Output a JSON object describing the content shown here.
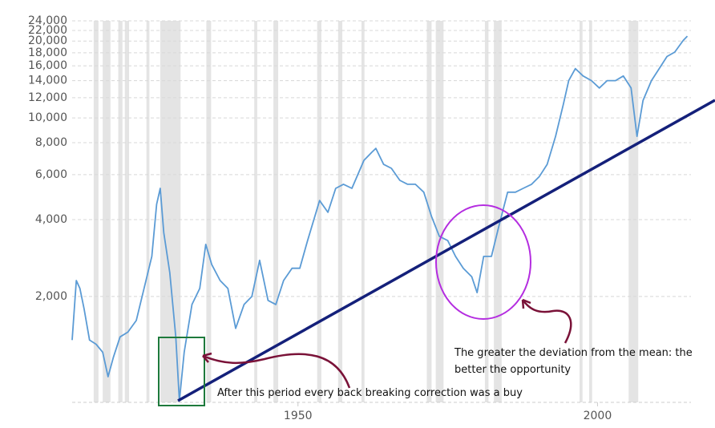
{
  "chart_data": {
    "type": "line",
    "log_scale": true,
    "grid": true,
    "color": "#5b9bd5",
    "recession_color": "#e4e4e4",
    "xlim": [
      1912.3,
      2015.6
    ],
    "xticks": [
      1950,
      2000
    ],
    "ylim": [
      770,
      24000
    ],
    "yticks": [
      {
        "value": 2000,
        "label": "2,000"
      },
      {
        "value": 4000,
        "label": "4,000"
      },
      {
        "value": 6000,
        "label": "6,000"
      },
      {
        "value": 8000,
        "label": "8,000"
      },
      {
        "value": 10000,
        "label": "10,000"
      },
      {
        "value": 12000,
        "label": "12,000"
      },
      {
        "value": 14000,
        "label": "14,000"
      },
      {
        "value": 16000,
        "label": "16,000"
      },
      {
        "value": 18000,
        "label": "18,000"
      },
      {
        "value": 20000,
        "label": "20,000"
      },
      {
        "value": 22000,
        "label": "22,000"
      },
      {
        "value": 24000,
        "label": "24,000"
      }
    ],
    "recessions": [
      [
        1915.9,
        1916.7
      ],
      [
        1917.4,
        1918.7
      ],
      [
        1920.0,
        1920.7
      ],
      [
        1921.1,
        1921.8
      ],
      [
        1924.7,
        1925.2
      ],
      [
        1927.0,
        1930.4
      ],
      [
        1934.7,
        1935.5
      ],
      [
        1942.7,
        1943.2
      ],
      [
        1945.9,
        1946.7
      ],
      [
        1953.2,
        1953.9
      ],
      [
        1956.7,
        1957.4
      ],
      [
        1960.6,
        1961.1
      ],
      [
        1971.5,
        1972.3
      ],
      [
        1973.0,
        1974.3
      ],
      [
        1981.2,
        1981.8
      ],
      [
        1982.7,
        1984.0
      ],
      [
        1997.0,
        1997.5
      ],
      [
        1998.6,
        1999.1
      ],
      [
        2005.2,
        2006.8
      ]
    ],
    "x": [
      1912.3,
      1913.0,
      1913.6,
      1914.3,
      1915.2,
      1916.3,
      1917.4,
      1918.3,
      1919.2,
      1920.3,
      1921.6,
      1923.0,
      1924.3,
      1925.6,
      1926.4,
      1927.0,
      1927.6,
      1928.6,
      1929.6,
      1930.2,
      1931.0,
      1932.3,
      1933.6,
      1934.6,
      1935.6,
      1937.0,
      1938.3,
      1939.6,
      1941.0,
      1942.3,
      1943.6,
      1945.0,
      1946.3,
      1947.6,
      1949.0,
      1950.3,
      1951.6,
      1953.6,
      1955.0,
      1956.3,
      1957.6,
      1959.0,
      1961.0,
      1962.3,
      1963.0,
      1964.3,
      1965.6,
      1967.0,
      1968.3,
      1969.6,
      1971.0,
      1972.3,
      1973.6,
      1975.0,
      1976.3,
      1977.6,
      1979.0,
      1979.9,
      1981.0,
      1982.3,
      1983.6,
      1985.0,
      1986.3,
      1987.6,
      1989.0,
      1990.3,
      1991.6,
      1993.0,
      1994.3,
      1995.2,
      1996.3,
      1997.6,
      1999.0,
      2000.3,
      2001.6,
      2003.0,
      2004.3,
      2005.6,
      2006.6,
      2007.6,
      2009.0,
      2010.3,
      2011.6,
      2012.9,
      2014.3,
      2015.0
    ],
    "values": [
      1350,
      2310,
      2150,
      1790,
      1350,
      1300,
      1210,
      970,
      1160,
      1390,
      1450,
      1610,
      2150,
      2870,
      4590,
      5300,
      3560,
      2480,
      1390,
      780,
      1210,
      1860,
      2150,
      3200,
      2670,
      2310,
      2150,
      1500,
      1860,
      2000,
      2770,
      1930,
      1860,
      2310,
      2580,
      2580,
      3310,
      4750,
      4270,
      5300,
      5500,
      5300,
      6820,
      7330,
      7600,
      6580,
      6350,
      5700,
      5500,
      5500,
      5120,
      4110,
      3440,
      3310,
      2870,
      2580,
      2390,
      2070,
      2870,
      2870,
      3830,
      5120,
      5120,
      5300,
      5500,
      5900,
      6580,
      8470,
      11300,
      14000,
      15600,
      14600,
      14000,
      13100,
      14000,
      14000,
      14600,
      13100,
      8470,
      11700,
      14000,
      15600,
      17400,
      18100,
      20100,
      20900
    ],
    "annotations": [
      "After this period every back breaking correction was a buy",
      "The greater the deviation from the mean: the better the opportunity"
    ]
  }
}
